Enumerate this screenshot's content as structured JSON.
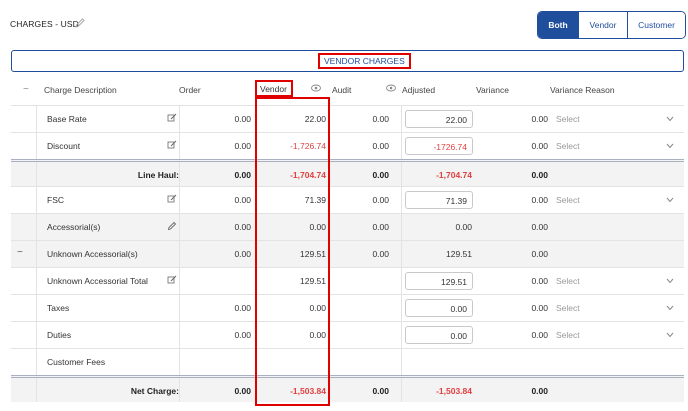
{
  "header": {
    "title": "CHARGES - USD",
    "toggle": [
      {
        "label": "Both",
        "active": true
      },
      {
        "label": "Vendor",
        "active": false
      },
      {
        "label": "Customer",
        "active": false
      }
    ]
  },
  "section": {
    "label": "VENDOR CHARGES"
  },
  "columns": {
    "collapse": "−",
    "description": "Charge Description",
    "order": "Order",
    "vendor": "Vendor",
    "audit": "Audit",
    "adjusted": "Adjusted",
    "variance": "Variance",
    "variance_reason": "Variance Reason"
  },
  "rows": [
    {
      "desc": "Base Rate",
      "order": "0.00",
      "vendor": "22.00",
      "audit": "0.00",
      "adjusted": "22.00",
      "variance": "0.00",
      "reason": "Select"
    },
    {
      "desc": "Discount",
      "order": "0.00",
      "vendor": "-1,726.74",
      "audit": "0.00",
      "adjusted": "-1726.74",
      "variance": "0.00",
      "reason": "Select"
    },
    {
      "label": "Line Haul:",
      "order": "0.00",
      "vendor": "-1,704.74",
      "audit": "0.00",
      "adjusted": "-1,704.74",
      "variance": "0.00"
    },
    {
      "desc": "FSC",
      "order": "0.00",
      "vendor": "71.39",
      "audit": "0.00",
      "adjusted": "71.39",
      "variance": "0.00",
      "reason": "Select"
    },
    {
      "desc": "Accessorial(s)",
      "order": "0.00",
      "vendor": "0.00",
      "audit": "0.00",
      "adjusted": "0.00",
      "variance": "0.00"
    },
    {
      "collapse": "−",
      "desc": "Unknown Accessorial(s)",
      "order": "0.00",
      "vendor": "129.51",
      "audit": "0.00",
      "adjusted": "129.51",
      "variance": "0.00"
    },
    {
      "desc": "Unknown Accessorial Total",
      "vendor": "129.51",
      "adjusted": "129.51",
      "variance": "0.00",
      "reason": "Select"
    },
    {
      "desc": "Taxes",
      "order": "0.00",
      "vendor": "0.00",
      "adjusted": "0.00",
      "variance": "0.00",
      "reason": "Select"
    },
    {
      "desc": "Duties",
      "order": "0.00",
      "vendor": "0.00",
      "adjusted": "0.00",
      "variance": "0.00",
      "reason": "Select"
    },
    {
      "desc": "Customer Fees"
    },
    {
      "label": "Net Charge:",
      "order": "0.00",
      "vendor": "-1,503.84",
      "audit": "0.00",
      "adjusted": "-1,503.84",
      "variance": "0.00"
    }
  ],
  "colors": {
    "accent": "#1f4e9d",
    "highlight": "#e00000",
    "negative": "#e04040"
  },
  "icons": [
    "pencil-icon",
    "edit-icon",
    "eye-icon",
    "chevron-down-icon"
  ]
}
